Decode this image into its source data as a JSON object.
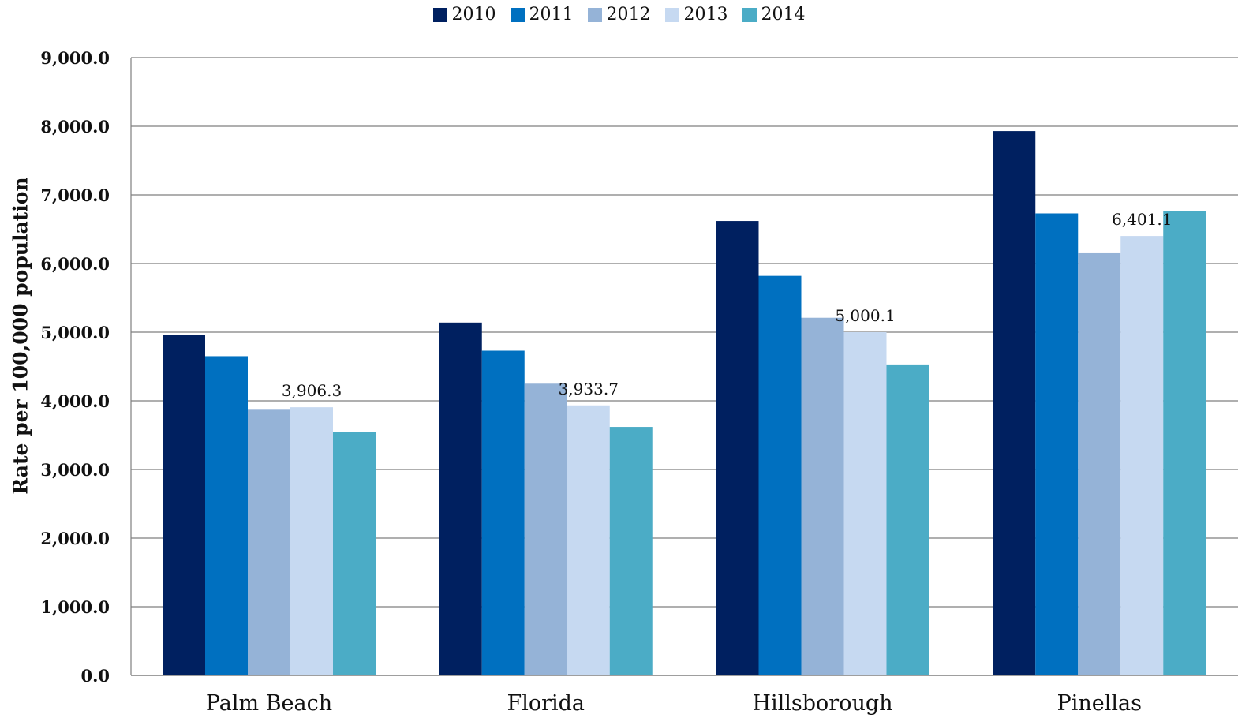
{
  "chart_data": {
    "type": "bar",
    "categories": [
      "Palm Beach",
      "Florida",
      "Hillsborough",
      "Pinellas"
    ],
    "series": [
      {
        "name": "2010",
        "color": "#002060",
        "values": [
          4960,
          5140,
          6620,
          7930
        ]
      },
      {
        "name": "2011",
        "color": "#0070C0",
        "values": [
          4650,
          4730,
          5820,
          6730
        ]
      },
      {
        "name": "2012",
        "color": "#95B3D7",
        "values": [
          3870,
          4250,
          5210,
          6150
        ]
      },
      {
        "name": "2013",
        "color": "#C6D9F1",
        "values": [
          3906.3,
          3933.7,
          5000.1,
          6401.1
        ]
      },
      {
        "name": "2014",
        "color": "#4BACC6",
        "values": [
          3550,
          3620,
          4530,
          6770
        ]
      }
    ],
    "data_labels": [
      {
        "series": "2013",
        "category": "Palm Beach",
        "text": "3,906.3"
      },
      {
        "series": "2013",
        "category": "Florida",
        "text": "3,933.7"
      },
      {
        "series": "2013",
        "category": "Hillsborough",
        "text": "5,000.1"
      },
      {
        "series": "2013",
        "category": "Pinellas",
        "text": "6,401.1"
      }
    ],
    "yticks": [
      0,
      1000,
      2000,
      3000,
      4000,
      5000,
      6000,
      7000,
      8000,
      9000
    ],
    "ytick_labels": [
      "0.0",
      "1,000.0",
      "2,000.0",
      "3,000.0",
      "4,000.0",
      "5,000.0",
      "6,000.0",
      "7,000.0",
      "8,000.0",
      "9,000.0"
    ],
    "ylim": [
      0,
      9000
    ],
    "ylabel": "Rate per 100,000 population",
    "xlabel": "",
    "title": "",
    "grid": true,
    "legend_position": "top-center"
  }
}
